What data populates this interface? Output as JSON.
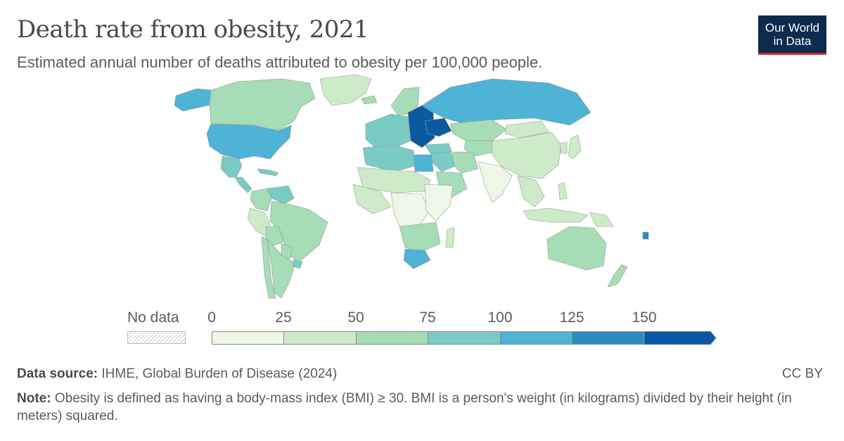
{
  "header": {
    "title": "Death rate from obesity, 2021",
    "subtitle": "Estimated annual number of deaths attributed to obesity per 100,000 people.",
    "logo_line1": "Our World",
    "logo_line2": "in Data"
  },
  "legend": {
    "no_data_label": "No data",
    "ticks": [
      "0",
      "25",
      "50",
      "75",
      "100",
      "125",
      "150"
    ],
    "bins": [
      {
        "from": 0,
        "to": 25,
        "color": "#eef7e7"
      },
      {
        "from": 25,
        "to": 50,
        "color": "#cdebc8"
      },
      {
        "from": 50,
        "to": 75,
        "color": "#a6dcb6"
      },
      {
        "from": 75,
        "to": 100,
        "color": "#7acbc4"
      },
      {
        "from": 100,
        "to": 125,
        "color": "#4fb3d6"
      },
      {
        "from": 125,
        "to": 150,
        "color": "#2b8cbe"
      },
      {
        "from": 150,
        "to": null,
        "color": "#0b5aa1"
      }
    ]
  },
  "map_regions": [
    {
      "name": "Greenland",
      "bin": 1
    },
    {
      "name": "Canada",
      "bin": 2
    },
    {
      "name": "Alaska",
      "bin": 4
    },
    {
      "name": "United States",
      "bin": 4
    },
    {
      "name": "Mexico",
      "bin": 3
    },
    {
      "name": "Central America",
      "bin": 3
    },
    {
      "name": "Caribbean",
      "bin": 3
    },
    {
      "name": "Venezuela",
      "bin": 3
    },
    {
      "name": "Colombia",
      "bin": 2
    },
    {
      "name": "Brazil",
      "bin": 2
    },
    {
      "name": "Peru",
      "bin": 1
    },
    {
      "name": "Bolivia",
      "bin": 2
    },
    {
      "name": "Argentina",
      "bin": 2
    },
    {
      "name": "Chile",
      "bin": 2
    },
    {
      "name": "Paraguay",
      "bin": 2
    },
    {
      "name": "Uruguay",
      "bin": 3
    },
    {
      "name": "Iceland",
      "bin": 2
    },
    {
      "name": "Scandinavia",
      "bin": 2
    },
    {
      "name": "Western Europe",
      "bin": 3
    },
    {
      "name": "Eastern Europe",
      "bin": 6
    },
    {
      "name": "Ukraine",
      "bin": 6
    },
    {
      "name": "Russia",
      "bin": 4
    },
    {
      "name": "Turkey",
      "bin": 3
    },
    {
      "name": "North Africa",
      "bin": 3
    },
    {
      "name": "Egypt",
      "bin": 4
    },
    {
      "name": "Sahel",
      "bin": 1
    },
    {
      "name": "West Africa",
      "bin": 1
    },
    {
      "name": "Central Africa",
      "bin": 0
    },
    {
      "name": "East Africa",
      "bin": 0
    },
    {
      "name": "Southern Africa",
      "bin": 2
    },
    {
      "name": "South Africa",
      "bin": 4
    },
    {
      "name": "Madagascar",
      "bin": 1
    },
    {
      "name": "Middle East",
      "bin": 3
    },
    {
      "name": "Arabian Peninsula",
      "bin": 2
    },
    {
      "name": "Iran",
      "bin": 2
    },
    {
      "name": "Central Asia",
      "bin": 2
    },
    {
      "name": "Kazakhstan",
      "bin": 2
    },
    {
      "name": "Mongolia",
      "bin": 1
    },
    {
      "name": "China",
      "bin": 1
    },
    {
      "name": "India",
      "bin": 0
    },
    {
      "name": "Southeast Asia",
      "bin": 1
    },
    {
      "name": "Indonesia",
      "bin": 1
    },
    {
      "name": "Japan",
      "bin": 1
    },
    {
      "name": "Korea",
      "bin": 1
    },
    {
      "name": "Philippines",
      "bin": 1
    },
    {
      "name": "Papua New Guinea",
      "bin": 1
    },
    {
      "name": "Australia",
      "bin": 2
    },
    {
      "name": "New Zealand",
      "bin": 2
    },
    {
      "name": "Pacific Islands",
      "bin": 5
    }
  ],
  "footer": {
    "source_label": "Data source:",
    "source_text": "IHME, Global Burden of Disease (2024)",
    "license": "CC BY",
    "note_label": "Note:",
    "note_text": "Obesity is defined as having a body-mass index (BMI) ≥ 30. BMI is a person's weight (in kilograms) divided by their height (in meters) squared."
  }
}
